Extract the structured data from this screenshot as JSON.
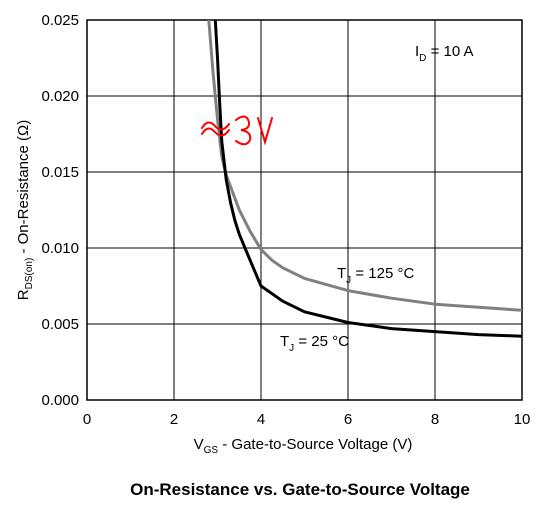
{
  "caption": "On-Resistance vs. Gate-to-Source Voltage",
  "handwritten_note": "≈3V",
  "annotations": {
    "id_main": "I",
    "id_sub": "D",
    "id_rest": " = 10 A",
    "tj125_main": "T",
    "tj125_sub": "J",
    "tj125_rest": " = 125 °C",
    "tj25_main": "T",
    "tj25_sub": "J",
    "tj25_rest": " = 25 °C"
  },
  "axis_labels": {
    "x_main": "V",
    "x_sub": "GS",
    "x_rest": " - Gate-to-Source Voltage (V)",
    "y_main": "R",
    "y_sub": "DS(on)",
    "y_rest": " - On-Resistance (Ω)"
  },
  "colors": {
    "tj25": "#000000",
    "tj125": "#808080",
    "grid": "#000000",
    "note": "#ff0000"
  },
  "chart_data": {
    "type": "line",
    "title": "On-Resistance vs. Gate-to-Source Voltage",
    "xlabel": "VGS - Gate-to-Source Voltage (V)",
    "ylabel": "RDS(on) - On-Resistance (Ω)",
    "xlim": [
      0,
      10
    ],
    "ylim": [
      0,
      0.025
    ],
    "x_ticks": [
      "0",
      "2",
      "4",
      "6",
      "8",
      "10"
    ],
    "y_ticks": [
      "0.000",
      "0.005",
      "0.010",
      "0.015",
      "0.020",
      "0.025"
    ],
    "grid": true,
    "series": [
      {
        "name": "TJ = 25 °C",
        "x": [
          2.95,
          3.0,
          3.05,
          3.1,
          3.2,
          3.3,
          3.4,
          3.5,
          3.75,
          4.0,
          4.5,
          5.0,
          6.0,
          7.0,
          8.0,
          9.0,
          10.0
        ],
        "y": [
          0.025,
          0.0225,
          0.0195,
          0.017,
          0.0145,
          0.013,
          0.0118,
          0.0109,
          0.0092,
          0.0075,
          0.0065,
          0.0058,
          0.0051,
          0.0047,
          0.0045,
          0.0043,
          0.0042
        ]
      },
      {
        "name": "TJ = 125 °C",
        "x": [
          2.8,
          2.9,
          3.0,
          3.1,
          3.2,
          3.5,
          3.75,
          4.0,
          4.25,
          4.5,
          5.0,
          6.0,
          7.0,
          8.0,
          9.0,
          10.0
        ],
        "y": [
          0.025,
          0.0215,
          0.0185,
          0.016,
          0.0148,
          0.0125,
          0.0111,
          0.0099,
          0.0092,
          0.0087,
          0.008,
          0.0072,
          0.0067,
          0.0063,
          0.0061,
          0.0059
        ]
      }
    ]
  }
}
